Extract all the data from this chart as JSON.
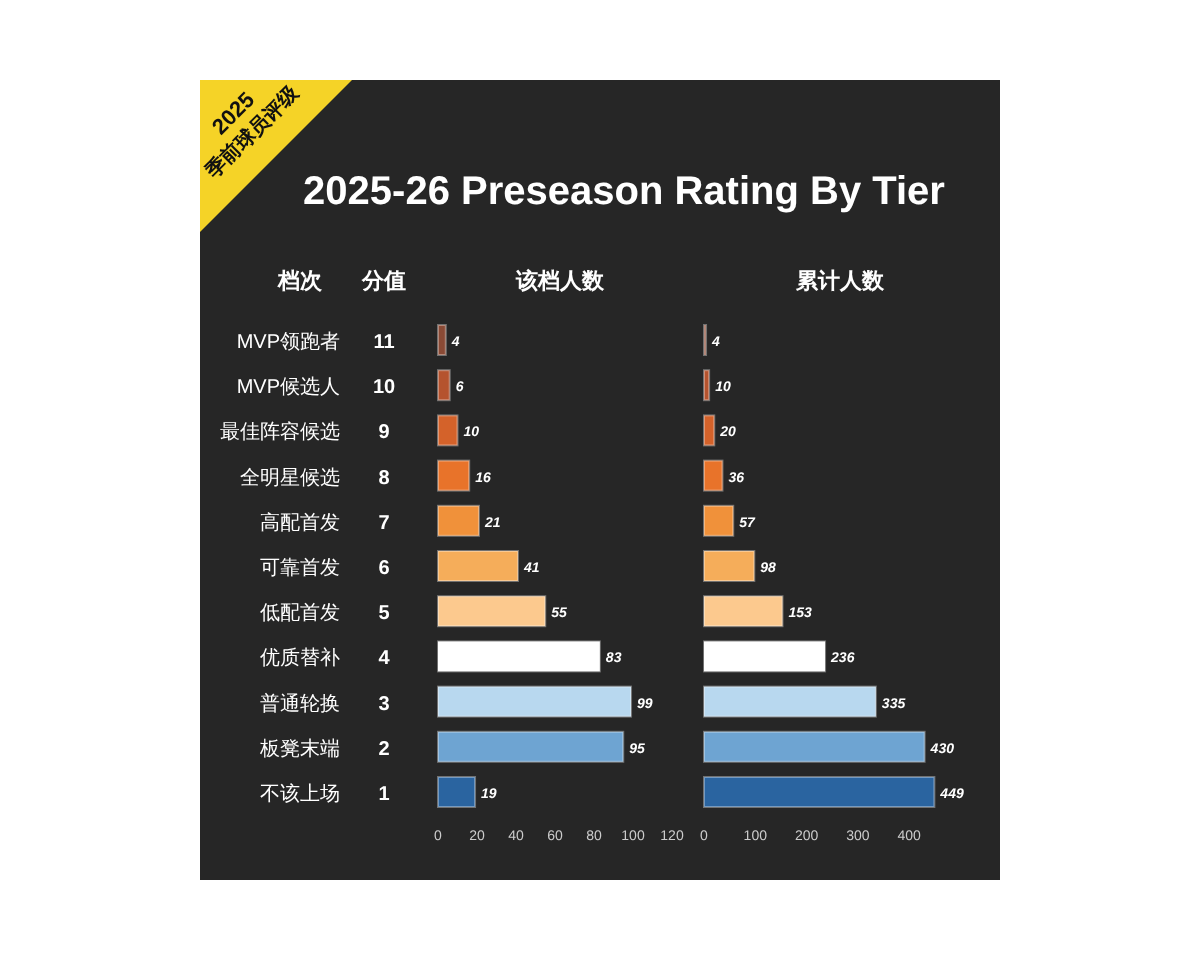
{
  "chart_data": [
    {
      "type": "other",
      "title": "2025-26 Preseason Rating By Tier",
      "annotations": [
        "2025",
        "季前球员评级"
      ]
    },
    {
      "type": "bar",
      "orientation": "horizontal",
      "ylabel": "档次",
      "title": "该档人数",
      "categories": [
        "MVP领跑者",
        "MVP候选人",
        "最佳阵容候选",
        "全明星候选",
        "高配首发",
        "可靠首发",
        "低配首发",
        "优质替补",
        "普通轮换",
        "板凳末端",
        "不该上场"
      ],
      "values": [
        4,
        6,
        10,
        16,
        21,
        41,
        55,
        83,
        99,
        95,
        19
      ],
      "colors": [
        "#8a4a35",
        "#b5532e",
        "#d4622a",
        "#e8732a",
        "#f0913a",
        "#f5ad5a",
        "#fcc98e",
        "#ffffff",
        "#b8d8ef",
        "#6ea4d2",
        "#2a64a0"
      ],
      "xlim": [
        0,
        120
      ],
      "xticks": [
        0,
        20,
        40,
        60,
        80,
        100,
        120
      ],
      "data_labels": true,
      "annotations": [
        "分值",
        "11",
        "10",
        "9",
        "8",
        "7",
        "6",
        "5",
        "4",
        "3",
        "2",
        "1"
      ]
    },
    {
      "type": "bar",
      "orientation": "horizontal",
      "title": "累计人数",
      "categories": [
        null,
        null,
        null,
        null,
        null,
        null,
        null,
        null,
        null,
        null,
        null
      ],
      "values": [
        4,
        10,
        20,
        36,
        57,
        98,
        153,
        236,
        335,
        430,
        449
      ],
      "colors": [
        "#8a4a35",
        "#b5532e",
        "#d4622a",
        "#e8732a",
        "#f0913a",
        "#f5ad5a",
        "#fcc98e",
        "#ffffff",
        "#b8d8ef",
        "#6ea4d2",
        "#2a64a0"
      ],
      "xlim": [
        0,
        460
      ],
      "xticks": [
        0,
        100,
        200,
        300,
        400
      ],
      "data_labels": true,
      "tick_labels": "x"
    }
  ]
}
